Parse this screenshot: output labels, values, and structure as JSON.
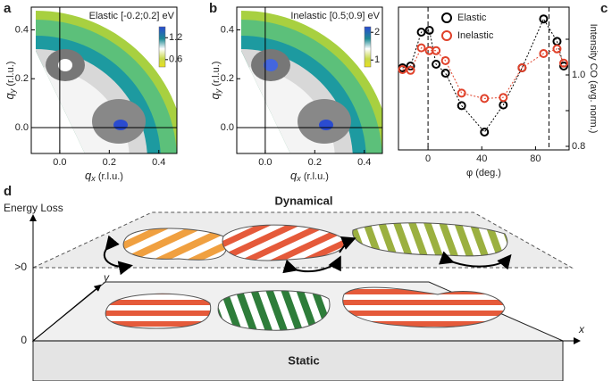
{
  "chart_data": [
    {
      "type": "heatmap",
      "panel": "a",
      "title": "Elastic [-0.2;0.2] eV",
      "xlabel": [
        "q",
        "x",
        " (r.l.u.)"
      ],
      "ylabel": [
        "q",
        "y",
        " (r.l.u.)"
      ],
      "xlim": [
        -0.115,
        0.473
      ],
      "ylim": [
        -0.106,
        0.493
      ],
      "xticks": [
        {
          "value": 0,
          "label": "0.0"
        },
        0.2,
        0.4
      ],
      "yticks": [
        {
          "value": 0,
          "label": "0.0"
        },
        0.2,
        0.4
      ],
      "clim": [
        0.4,
        1.5
      ],
      "cticks": [
        1.2,
        0.6
      ]
    },
    {
      "type": "heatmap",
      "panel": "b",
      "title": "Inelastic [0.5;0.9] eV",
      "xlabel": [
        "q",
        "x",
        " (r.l.u.)"
      ],
      "ylabel": [
        "q",
        "y",
        " (r.l.u.)"
      ],
      "xlim": [
        -0.115,
        0.473
      ],
      "ylim": [
        -0.106,
        0.493
      ],
      "xticks": [
        {
          "value": 0,
          "label": "0.0"
        },
        0.2,
        0.4
      ],
      "yticks": [
        {
          "value": 0,
          "label": "0.0"
        },
        0.2,
        0.4
      ],
      "clim": [
        0.75,
        2.2
      ],
      "cticks": [
        2,
        1
      ]
    },
    {
      "type": "line",
      "panel": "c",
      "xlabel": "φ (deg.)",
      "ylabel": "Intensity CO (avg. norm.)",
      "xlim": [
        -22,
        105
      ],
      "ylim": [
        0.79,
        1.19
      ],
      "xticks": [
        0,
        40,
        80
      ],
      "yticks": [
        {
          "value": 0.8,
          "label": "0.8"
        },
        0.9,
        {
          "value": 1,
          "label": "1.0"
        },
        1.1
      ],
      "ytick_labels_shown": [
        0,
        2
      ],
      "vlines": [
        0,
        90
      ],
      "legend": "upper center",
      "x": [
        -19,
        -13,
        -5,
        1,
        6,
        13,
        25,
        42,
        56,
        70,
        86,
        96,
        101
      ],
      "series": [
        {
          "name": "Elastic",
          "color": "#000000",
          "values": [
            1.02,
            1.025,
            1.12,
            1.125,
            1.03,
            1.005,
            0.914,
            0.84,
            0.916,
            1.02,
            1.157,
            1.094,
            1.025
          ]
        },
        {
          "name": "Inelastic",
          "color": "#e0412a",
          "values": [
            1.015,
            1.013,
            1.076,
            1.068,
            1.068,
            1.04,
            0.949,
            0.934,
            0.937,
            1.02,
            1.06,
            1.073,
            1.033
          ]
        }
      ]
    }
  ],
  "diagram": {
    "panel": "d",
    "axis_label": "Energy Loss",
    "levels": [
      ">0",
      "0"
    ],
    "x_axis": "x",
    "y_axis": "y",
    "top_plane": "Dynamical",
    "bottom_plane": "Static"
  }
}
